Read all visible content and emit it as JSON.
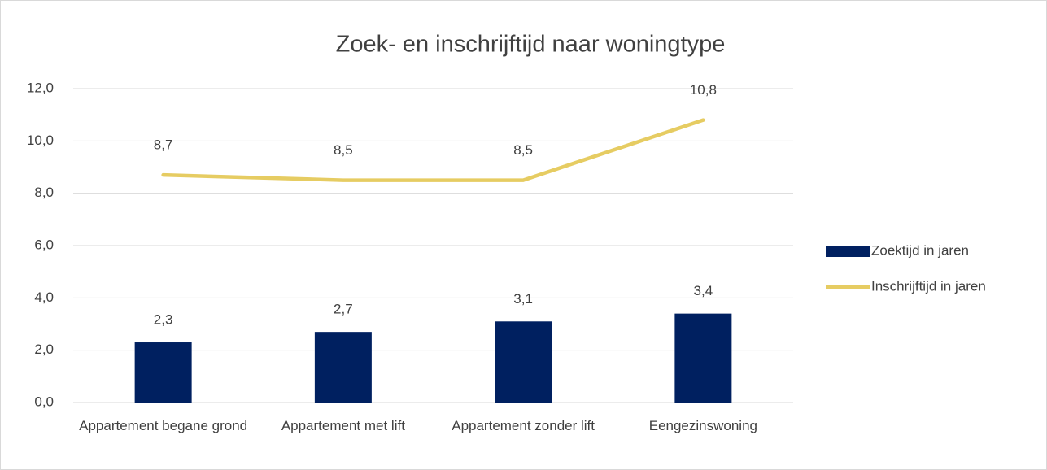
{
  "chart_data": {
    "type": "bar",
    "title": "Zoek- en inschrijftijd naar woningtype",
    "categories": [
      "Appartement begane grond",
      "Appartement met lift",
      "Appartement zonder lift",
      "Eengezinswoning"
    ],
    "series": [
      {
        "name": "Zoektijd in jaren",
        "type": "bar",
        "color": "#002060",
        "values": [
          2.3,
          2.7,
          3.1,
          3.4
        ],
        "value_labels": [
          "2,3",
          "2,7",
          "3,1",
          "3,4"
        ]
      },
      {
        "name": "Inschrijftijd in jaren",
        "type": "line",
        "color": "#e6cc62",
        "values": [
          8.7,
          8.5,
          8.5,
          10.8
        ],
        "value_labels": [
          "8,7",
          "8,5",
          "8,5",
          "10,8"
        ]
      }
    ],
    "ylim": [
      0,
      12
    ],
    "yticks": [
      {
        "value": 0,
        "label": "0,0"
      },
      {
        "value": 2,
        "label": "2,0"
      },
      {
        "value": 4,
        "label": "4,0"
      },
      {
        "value": 6,
        "label": "6,0"
      },
      {
        "value": 8,
        "label": "8,0"
      },
      {
        "value": 10,
        "label": "10,0"
      },
      {
        "value": 12,
        "label": "12,0"
      }
    ],
    "grid": true,
    "legend": "right"
  }
}
